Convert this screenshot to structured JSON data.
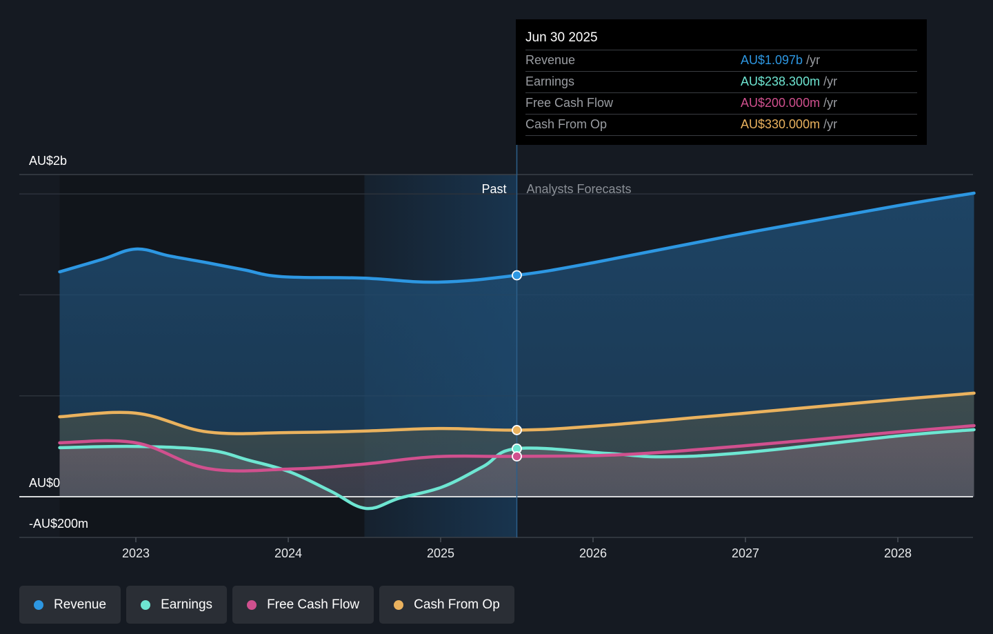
{
  "chart_data": {
    "type": "line",
    "title": "",
    "xlabel": "",
    "ylabel": "",
    "units": "AU$ millions",
    "y_tick_labels": [
      {
        "value": 2000,
        "label": "AU$2b"
      },
      {
        "value": 0,
        "label": "AU$0"
      },
      {
        "value": -200,
        "label": "-AU$200m"
      }
    ],
    "ylim": [
      -200,
      1600
    ],
    "x_tick_labels": [
      "2023",
      "2024",
      "2025",
      "2026",
      "2027",
      "2028"
    ],
    "x_ticks": [
      2023,
      2024,
      2025,
      2026,
      2027,
      2028
    ],
    "xlim": [
      2022.5,
      2028.5
    ],
    "past_region": {
      "start": 2024.5,
      "end": 2025.5,
      "label": "Past"
    },
    "forecast_label": "Analysts Forecasts",
    "divider_x": 2025.5,
    "grid": true,
    "legend_position": "bottom-left",
    "series": [
      {
        "name": "Revenue",
        "color": "#2d97e2",
        "x": [
          2022.5,
          2022.78,
          2023.0,
          2023.22,
          2023.47,
          2023.71,
          2023.96,
          2024.49,
          2024.98,
          2025.5,
          2026.0,
          2027.0,
          2028.0,
          2028.5
        ],
        "values": [
          1114,
          1176,
          1227,
          1193,
          1159,
          1124,
          1090,
          1083,
          1063,
          1097,
          1159,
          1306,
          1442,
          1504
        ]
      },
      {
        "name": "Earnings",
        "color": "#6ee6d2",
        "x": [
          2022.5,
          2023.0,
          2023.47,
          2023.74,
          2024.01,
          2024.28,
          2024.51,
          2024.73,
          2025.01,
          2025.28,
          2025.5,
          2026.09,
          2026.45,
          2027.0,
          2028.0,
          2028.5
        ],
        "values": [
          243,
          249,
          232,
          181,
          123,
          27,
          -58,
          -7,
          48,
          150,
          238.3,
          215,
          198,
          219,
          301,
          332
        ]
      },
      {
        "name": "Free Cash Flow",
        "color": "#d0508e",
        "x": [
          2022.5,
          2023.0,
          2023.47,
          2024.01,
          2024.49,
          2024.96,
          2025.5,
          2026.18,
          2027.0,
          2028.0,
          2028.5
        ],
        "values": [
          267,
          267,
          140,
          137,
          161,
          198,
          200,
          208,
          253,
          321,
          352
        ]
      },
      {
        "name": "Cash From Op",
        "color": "#eab25e",
        "x": [
          2022.5,
          2023.0,
          2023.47,
          2024.01,
          2024.49,
          2025.0,
          2025.5,
          2026.0,
          2027.0,
          2028.0,
          2028.5
        ],
        "values": [
          396,
          414,
          321,
          318,
          325,
          338,
          330,
          349,
          414,
          482,
          513
        ]
      }
    ]
  },
  "tooltip": {
    "date": "Jun 30 2025",
    "rows": [
      {
        "label": "Revenue",
        "value": "AU$1.097b",
        "unit": "/yr",
        "color": "#2d97e2"
      },
      {
        "label": "Earnings",
        "value": "AU$238.300m",
        "unit": "/yr",
        "color": "#6ee6d2"
      },
      {
        "label": "Free Cash Flow",
        "value": "AU$200.000m",
        "unit": "/yr",
        "color": "#d0508e"
      },
      {
        "label": "Cash From Op",
        "value": "AU$330.000m",
        "unit": "/yr",
        "color": "#eab25e"
      }
    ]
  },
  "legend": [
    {
      "label": "Revenue",
      "color": "#2d97e2"
    },
    {
      "label": "Earnings",
      "color": "#6ee6d2"
    },
    {
      "label": "Free Cash Flow",
      "color": "#d0508e"
    },
    {
      "label": "Cash From Op",
      "color": "#eab25e"
    }
  ]
}
